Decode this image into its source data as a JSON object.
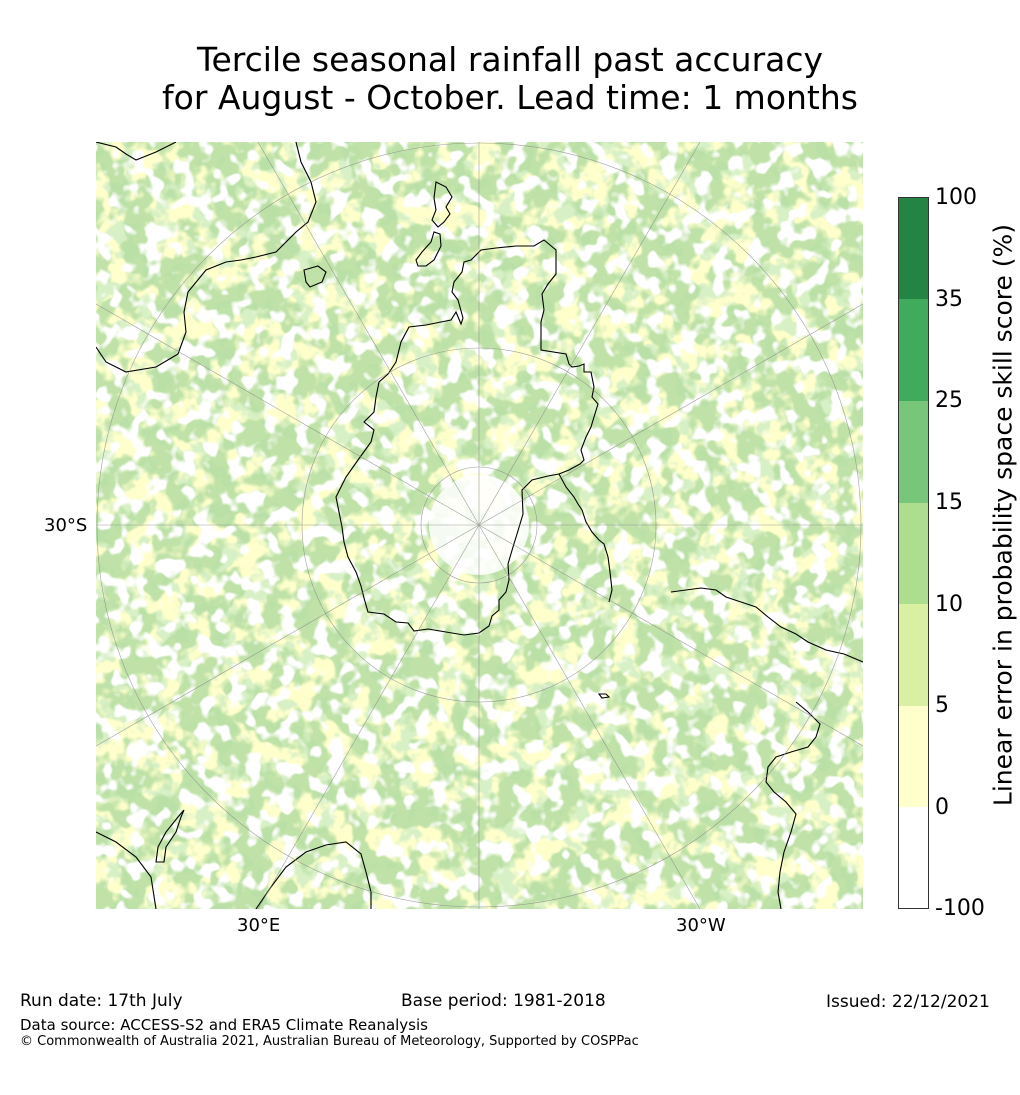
{
  "title": {
    "line1": "Tercile seasonal rainfall past accuracy",
    "line2": "for August - October. Lead time: 1 months"
  },
  "map": {
    "projection": "south-polar-stereographic",
    "lat_label": "30°S",
    "lon_labels": [
      "30°E",
      "30°W"
    ],
    "land_outline_color": "#000000",
    "grid_color": "#888888"
  },
  "colorbar": {
    "label": "Linear error in probability space skill score (%)",
    "ticks": [
      "100",
      "35",
      "25",
      "15",
      "10",
      "5",
      "0",
      "-100"
    ],
    "colors": [
      "#238443",
      "#41ab5d",
      "#78c679",
      "#addd8e",
      "#d9f0a3",
      "#ffffcc",
      "#ffffff"
    ]
  },
  "footer": {
    "run_date": "Run date: 17th July",
    "base_period": "Base period: 1981-2018",
    "issued": "Issued: 22/12/2021",
    "source": "Data source: ACCESS-S2 and ERA5 Climate Reanalysis",
    "copyright": "© Commonwealth of Australia 2021, Australian Bureau of Meteorology, Supported by COSPPac"
  }
}
